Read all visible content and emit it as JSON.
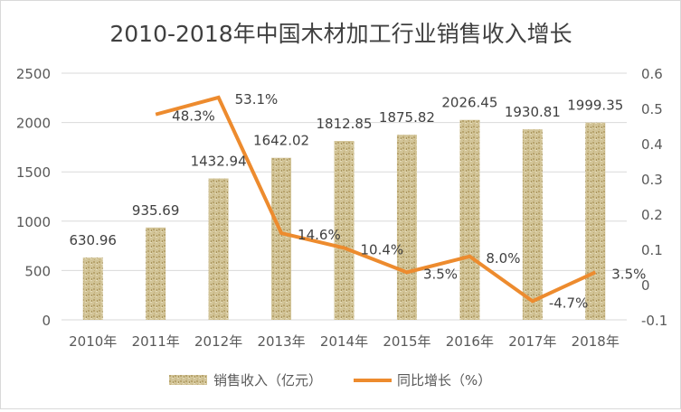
{
  "chart_data": {
    "type": "bar+line",
    "title": "2010-2018年中国木材加工行业销售收入增长",
    "categories": [
      "2010年",
      "2011年",
      "2012年",
      "2013年",
      "2014年",
      "2015年",
      "2016年",
      "2017年",
      "2018年"
    ],
    "series": [
      {
        "name": "销售收入（亿元）",
        "type": "bar",
        "axis": "left",
        "values": [
          630.96,
          935.69,
          1432.94,
          1642.02,
          1812.85,
          1875.82,
          2026.45,
          1930.81,
          1999.35
        ],
        "labels": [
          "630.96",
          "935.69",
          "1432.94",
          "1642.02",
          "1812.85",
          "1875.82",
          "2026.45",
          "1930.81",
          "1999.35"
        ],
        "color": "#c9b98a"
      },
      {
        "name": "同比增长（%）",
        "type": "line",
        "axis": "right",
        "values": [
          null,
          0.483,
          0.531,
          0.146,
          0.104,
          0.035,
          0.08,
          -0.047,
          0.035
        ],
        "labels": [
          "",
          "48.3%",
          "53.1%",
          "14.6%",
          "10.4%",
          "3.5%",
          "8.0%",
          "-4.7%",
          "3.5%"
        ],
        "color": "#ed8b2e"
      }
    ],
    "left_axis": {
      "ylim": [
        0,
        2500
      ],
      "ticks": [
        "0",
        "500",
        "1000",
        "1500",
        "2000",
        "2500"
      ]
    },
    "right_axis": {
      "ylim": [
        -0.1,
        0.6
      ],
      "ticks": [
        "-0.1",
        "0",
        "0.1",
        "0.2",
        "0.3",
        "0.4",
        "0.5",
        "0.6"
      ]
    },
    "grid": true,
    "legend": "bottom"
  }
}
